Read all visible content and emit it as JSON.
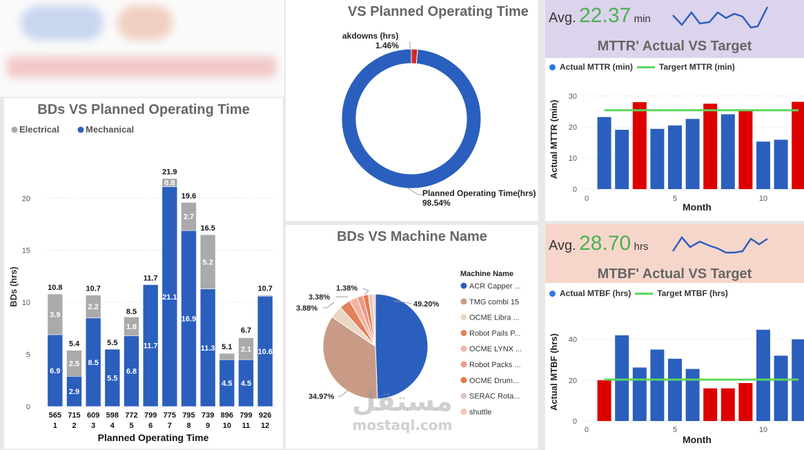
{
  "header": {
    "logo_alt": "blurred logo",
    "banner_alt": "blurred banner"
  },
  "bd_chart": {
    "title": "BDs VS Planned Operating Time",
    "legend": [
      {
        "name": "Electrical",
        "color": "#aaaaaa"
      },
      {
        "name": "Mechanical",
        "color": "#2b5fbd"
      }
    ],
    "xlabel": "Planned Operating Time",
    "ylabel": "BDs (hrs)"
  },
  "donut": {
    "title": "VS Planned Operating Time",
    "label_a": "akdowns (hrs)",
    "label_a_pct": "1.46%",
    "label_b": "Planned Operating Time(hrs)",
    "label_b_pct": "98.54%"
  },
  "pie": {
    "title": "BDs VS Machine Name",
    "legend_title": "Machine Name",
    "labels_pct": [
      "49.20%",
      "34.97%",
      "3.88%",
      "3.38%",
      "1.38%"
    ]
  },
  "mttr": {
    "avg_label": "Avg.",
    "avg_value": "22.37",
    "avg_unit": "min",
    "title": "MTTR' Actual VS Target",
    "legend_actual": "Actual MTTR (min)",
    "legend_target": "Targert MTTR (min)",
    "ylabel": "Actual MTTR (min)",
    "xlabel": "Month"
  },
  "mtbf": {
    "avg_label": "Avg.",
    "avg_value": "28.70",
    "avg_unit": "hrs",
    "title": "MTBF' Actual VS Target",
    "legend_actual": "Actual MTBF (hrs)",
    "legend_target": "Target MTBF (hrs)",
    "ylabel": "Actual MTBF (hrs)",
    "xlabel": "Month"
  },
  "watermark": {
    "arabic": "مستقل",
    "latin": "mostaql.com"
  },
  "chart_data": [
    {
      "type": "bar",
      "title": "BDs VS Planned Operating Time",
      "stacked": true,
      "categories": [
        {
          "top": "565",
          "bottom": "1"
        },
        {
          "top": "715",
          "bottom": "2"
        },
        {
          "top": "609",
          "bottom": "3"
        },
        {
          "top": "598",
          "bottom": "4"
        },
        {
          "top": "772",
          "bottom": "5"
        },
        {
          "top": "799",
          "bottom": "6"
        },
        {
          "top": "775",
          "bottom": "7"
        },
        {
          "top": "795",
          "bottom": "8"
        },
        {
          "top": "739",
          "bottom": "9"
        },
        {
          "top": "896",
          "bottom": "10"
        },
        {
          "top": "799",
          "bottom": "11"
        },
        {
          "top": "926",
          "bottom": "12"
        }
      ],
      "series": [
        {
          "name": "Mechanical",
          "color": "#2b5fbd",
          "values": [
            6.9,
            2.9,
            8.5,
            5.5,
            6.8,
            11.7,
            21.1,
            16.9,
            11.3,
            4.5,
            4.5,
            10.6
          ]
        },
        {
          "name": "Electrical",
          "color": "#aaaaaa",
          "values": [
            3.9,
            2.5,
            2.2,
            null,
            1.8,
            null,
            0.8,
            2.7,
            5.2,
            0.6,
            2.1,
            0.1
          ]
        }
      ],
      "totals": [
        10.8,
        5.4,
        10.7,
        5.5,
        8.5,
        11.7,
        21.9,
        19.6,
        16.5,
        5.1,
        6.7,
        10.7
      ],
      "yticks": [
        0,
        5,
        10,
        15,
        20
      ],
      "ylim": [
        0,
        23
      ],
      "xlabel": "Planned Operating Time",
      "ylabel": "BDs (hrs)"
    },
    {
      "type": "pie",
      "donut": true,
      "title": "VS Planned Operating Time",
      "slices": [
        {
          "name": "Breakdowns (hrs)",
          "value": 1.46,
          "color": "#d62828"
        },
        {
          "name": "Planned Operating Time(hrs)",
          "value": 98.54,
          "color": "#2b5fbd"
        }
      ]
    },
    {
      "type": "pie",
      "title": "BDs VS Machine Name",
      "slices": [
        {
          "name": "ACR Capper ...",
          "value": 49.2,
          "color": "#2b5fbd"
        },
        {
          "name": "TMG combi 15",
          "value": 34.97,
          "color": "#c99a86"
        },
        {
          "name": "OCME Libra ...",
          "value": 3.88,
          "color": "#ead7c3"
        },
        {
          "name": "Robot Pails P...",
          "value": 3.38,
          "color": "#e0825a"
        },
        {
          "name": "OCME LYNX ...",
          "value": 2.5,
          "color": "#f2b5a0"
        },
        {
          "name": "Robot Packs ...",
          "value": 1.9,
          "color": "#ee9a8a"
        },
        {
          "name": "OCME Drum...",
          "value": 1.6,
          "color": "#e6794c"
        },
        {
          "name": "SERAC Rota...",
          "value": 1.38,
          "color": "#dcc8c4"
        },
        {
          "name": "shuttle",
          "value": 0.8,
          "color": "#f7c4b8"
        }
      ]
    },
    {
      "type": "bar",
      "title": "MTTR' Actual VS Target",
      "x": [
        1,
        2,
        3,
        4,
        5,
        6,
        7,
        8,
        9,
        10,
        11,
        12
      ],
      "series": [
        {
          "name": "Actual MTTR (min)",
          "values": [
            23.2,
            19.1,
            28.0,
            19.4,
            20.5,
            22.6,
            27.5,
            24.1,
            25.6,
            15.3,
            15.9,
            28.1
          ],
          "colors": [
            "#2b5fbd",
            "#2b5fbd",
            "#dd0000",
            "#2b5fbd",
            "#2b5fbd",
            "#2b5fbd",
            "#dd0000",
            "#2b5fbd",
            "#dd0000",
            "#2b5fbd",
            "#2b5fbd",
            "#dd0000"
          ]
        },
        {
          "name": "Targert MTTR (min)",
          "type": "line",
          "values": [
            25.4,
            25.4,
            25.4,
            25.4,
            25.4,
            25.4,
            25.4,
            25.4,
            25.4,
            25.4,
            25.4,
            25.4
          ]
        }
      ],
      "xticks": [
        0,
        5,
        10
      ],
      "yticks": [
        0,
        10,
        20,
        30
      ],
      "ylim": [
        0,
        32
      ],
      "xlabel": "Month",
      "ylabel": "Actual MTTR (min)"
    },
    {
      "type": "bar",
      "title": "MTBF' Actual VS Target",
      "x": [
        1,
        2,
        3,
        4,
        5,
        6,
        7,
        8,
        9,
        10,
        11,
        12
      ],
      "series": [
        {
          "name": "Actual MTBF (hrs)",
          "values": [
            20.0,
            42.0,
            26.2,
            35.0,
            30.5,
            25.5,
            16.0,
            16.0,
            18.6,
            44.7,
            32.0,
            40.0
          ],
          "colors": [
            "#dd0000",
            "#2b5fbd",
            "#2b5fbd",
            "#2b5fbd",
            "#2b5fbd",
            "#2b5fbd",
            "#dd0000",
            "#dd0000",
            "#dd0000",
            "#2b5fbd",
            "#2b5fbd",
            "#2b5fbd"
          ]
        },
        {
          "name": "Target MTBF (hrs)",
          "type": "line",
          "values": [
            20.3,
            20.3,
            20.3,
            20.3,
            20.3,
            20.3,
            20.3,
            20.3,
            20.3,
            20.3,
            20.3,
            20.3
          ]
        }
      ],
      "xticks": [
        0,
        5,
        10
      ],
      "yticks": [
        0,
        20,
        40
      ],
      "ylim": [
        0,
        48
      ],
      "xlabel": "Month",
      "ylabel": "Actual MTBF (hrs)"
    }
  ]
}
